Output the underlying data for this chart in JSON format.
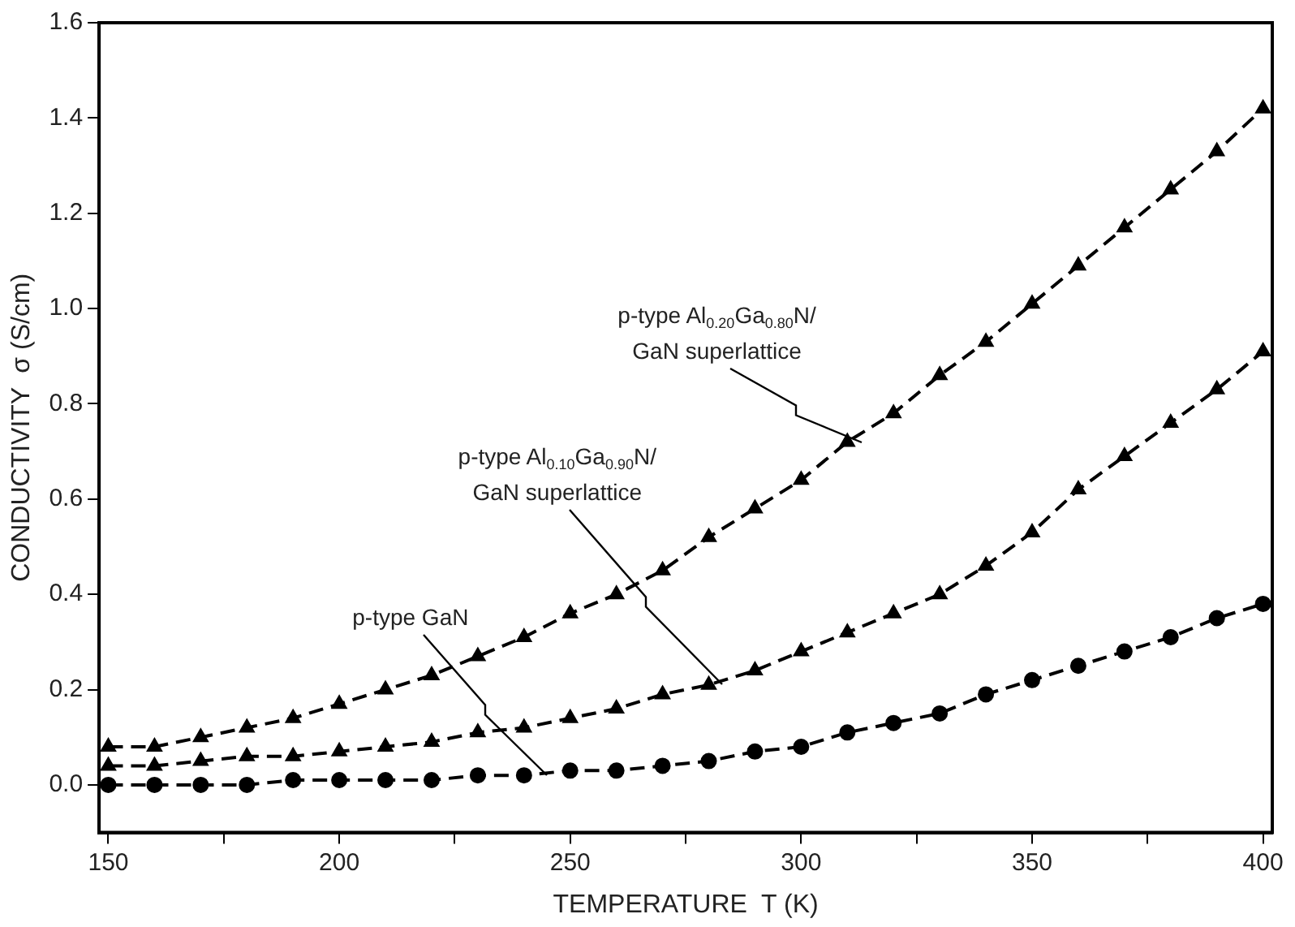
{
  "chart_data": {
    "type": "line",
    "xlabel": "TEMPERATURE  T (K)",
    "ylabel": "CONDUCTIVITY  σ (S/cm)",
    "x": [
      150,
      160,
      170,
      180,
      190,
      200,
      210,
      220,
      230,
      240,
      250,
      260,
      270,
      280,
      290,
      300,
      310,
      320,
      330,
      340,
      350,
      360,
      370,
      380,
      390,
      400
    ],
    "series": [
      {
        "color": "#000000",
        "marker": "circle",
        "values": [
          0.0,
          0.0,
          0.0,
          0.0,
          0.01,
          0.01,
          0.01,
          0.01,
          0.02,
          0.02,
          0.03,
          0.03,
          0.04,
          0.05,
          0.07,
          0.08,
          0.11,
          0.13,
          0.15,
          0.19,
          0.22,
          0.25,
          0.28,
          0.31,
          0.35,
          0.38
        ]
      },
      {
        "color": "#000000",
        "marker": "triangle",
        "values": [
          0.04,
          0.04,
          0.05,
          0.06,
          0.06,
          0.07,
          0.08,
          0.09,
          0.11,
          0.12,
          0.14,
          0.16,
          0.19,
          0.21,
          0.24,
          0.28,
          0.32,
          0.36,
          0.4,
          0.46,
          0.53,
          0.62,
          0.69,
          0.76,
          0.83,
          0.91
        ]
      },
      {
        "color": "#000000",
        "marker": "triangle",
        "values": [
          0.08,
          0.08,
          0.1,
          0.12,
          0.14,
          0.17,
          0.2,
          0.23,
          0.27,
          0.31,
          0.36,
          0.4,
          0.45,
          0.52,
          0.58,
          0.64,
          0.72,
          0.78,
          0.86,
          0.93,
          1.01,
          1.09,
          1.17,
          1.25,
          1.33,
          1.42
        ]
      }
    ],
    "xlim": [
      148,
      402
    ],
    "ylim": [
      -0.1,
      1.6
    ],
    "xticks": [
      150,
      {
        "value": 175,
        "label": null
      },
      200,
      {
        "value": 225,
        "label": null
      },
      250,
      {
        "value": 275,
        "label": null
      },
      300,
      {
        "value": 325,
        "label": null
      },
      350,
      {
        "value": 375,
        "label": null
      },
      400
    ],
    "yticks": [
      {
        "value": 0,
        "label": "0.0"
      },
      {
        "value": 0.2,
        "label": "0.2"
      },
      {
        "value": 0.4,
        "label": "0.4"
      },
      {
        "value": 0.6,
        "label": "0.6"
      },
      {
        "value": 0.8,
        "label": "0.8"
      },
      {
        "value": 1.0,
        "label": "1.0"
      },
      {
        "value": 1.2,
        "label": "1.2"
      },
      {
        "value": 1.4,
        "label": "1.4"
      },
      {
        "value": 1.6,
        "label": "1.6"
      }
    ],
    "line_style": "dashed",
    "grid": false,
    "legend": false,
    "annotations": [
      {
        "text": "p-type GaN",
        "x": 245,
        "y": 0.02
      },
      {
        "text": "p-type Al$_{0.10}$Ga$_{0.90}$N/\nGaN superlattice",
        "x": 283,
        "y": 0.21
      },
      {
        "text": "p-type Al$_{0.20}$Ga$_{0.80}$N/\nGaN superlattice",
        "x": 313,
        "y": 0.72
      }
    ]
  }
}
